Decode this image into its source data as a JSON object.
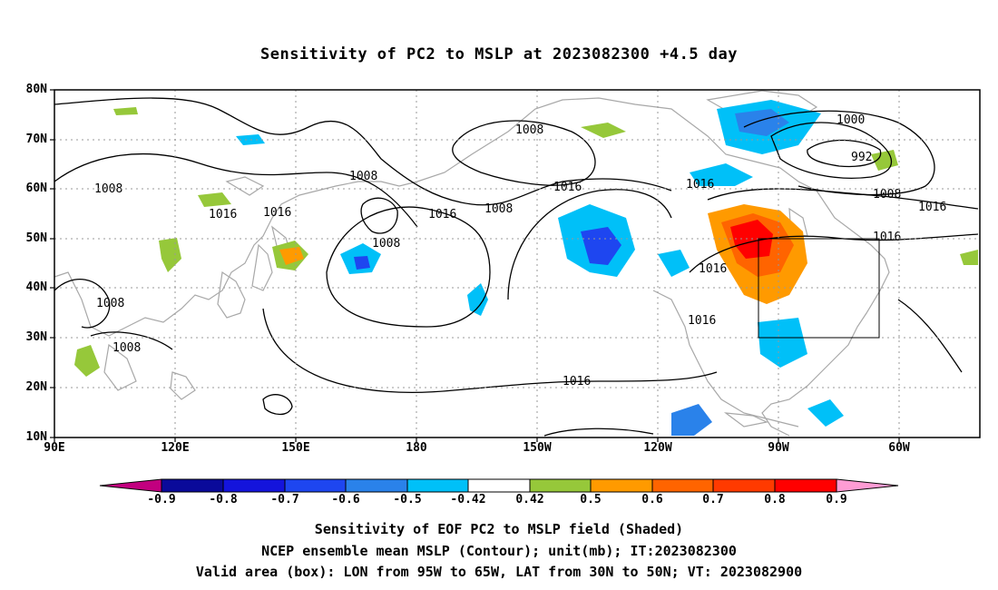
{
  "title": "Sensitivity of PC2 to MSLP at 2023082300 +4.5 day",
  "lat_labels": [
    "80N",
    "70N",
    "60N",
    "50N",
    "40N",
    "30N",
    "20N",
    "10N"
  ],
  "lon_labels": [
    "90E",
    "120E",
    "150E",
    "180",
    "150W",
    "120W",
    "90W",
    "60W"
  ],
  "contour_labels": [
    "1008",
    "1000",
    "992",
    "1008",
    "1016",
    "1008",
    "1016",
    "1016",
    "1016",
    "1008",
    "1008",
    "1016",
    "1016",
    "1016",
    "1008",
    "1008",
    "1016",
    "1016",
    "1016",
    "1008"
  ],
  "colorbar": {
    "labels": [
      "-0.9",
      "-0.8",
      "-0.7",
      "-0.6",
      "-0.5",
      "-0.42",
      "0.42",
      "0.5",
      "0.6",
      "0.7",
      "0.8",
      "0.9"
    ],
    "colors": [
      "#c2007f",
      "#0a0a9a",
      "#1414dc",
      "#1e46f0",
      "#2a82ea",
      "#00c0f8",
      "#ffffff",
      "#96c83a",
      "#ff9a00",
      "#ff6400",
      "#ff3a00",
      "#ff0000",
      "#ff9cd4"
    ]
  },
  "valid_box": {
    "lon_range": [
      "95W",
      "65W"
    ],
    "lat_range": [
      "30N",
      "50N"
    ]
  },
  "captions": {
    "line1": "Sensitivity of EOF PC2 to MSLP field (Shaded)",
    "line2": "NCEP ensemble mean MSLP (Contour); unit(mb); IT:2023082300",
    "line3": "Valid area (box): LON from 95W to 65W, LAT from 30N to 50N; VT: 2023082900"
  }
}
